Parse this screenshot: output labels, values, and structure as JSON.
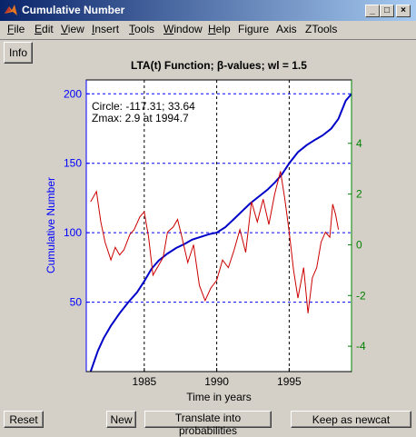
{
  "window": {
    "title": "Cumulative Number"
  },
  "title_buttons": {
    "minimize": "_",
    "maximize": "□",
    "close": "×"
  },
  "menus": [
    {
      "label": "File",
      "u": "F",
      "rest": "ile"
    },
    {
      "label": "Edit",
      "u": "E",
      "rest": "dit"
    },
    {
      "label": "View",
      "u": "V",
      "rest": "iew"
    },
    {
      "label": "Insert",
      "u": "I",
      "rest": "nsert"
    },
    {
      "label": "Tools",
      "u": "T",
      "rest": "ools"
    },
    {
      "label": "Window",
      "u": "W",
      "rest": "indow"
    },
    {
      "label": "Help",
      "u": "H",
      "rest": "elp"
    },
    {
      "label": "Figure",
      "u": "",
      "rest": "Figure"
    },
    {
      "label": "Axis",
      "u": "",
      "rest": "Axis"
    },
    {
      "label": "ZTools",
      "u": "",
      "rest": "ZTools"
    }
  ],
  "buttons": {
    "info": "Info",
    "reset": "Reset",
    "new": "New",
    "translate": "Translate into probabilities",
    "keep": "Keep as newcat"
  },
  "colors": {
    "left_axis": "#0000ff",
    "right_axis": "#008000",
    "cum_line": "#0000c8",
    "lta_line": "#cc0000",
    "title_gradient_start": "#0a246a"
  },
  "chart_data": {
    "type": "line",
    "title": "LTA(t) Function; β-values; wl = 1.5",
    "xlabel": "Time in years",
    "ylabel": "Cumulative Number",
    "xlim": [
      1981,
      1999.3
    ],
    "ylim_left": [
      0,
      210
    ],
    "ylim_right": [
      -5,
      6.5
    ],
    "x_ticks": [
      1985,
      1990,
      1995
    ],
    "y_ticks_left": [
      50,
      100,
      150,
      200
    ],
    "y_ticks_right": [
      -4,
      -2,
      0,
      2,
      4
    ],
    "grid": "dashed at ticks",
    "annotations": [
      "Circle: -117.31; 33.64",
      "Zmax: 2.9 at 1994.7"
    ],
    "series": [
      {
        "axis": "left",
        "x": [
          1981.3,
          1981.8,
          1982.2,
          1982.7,
          1983.3,
          1983.9,
          1984.5,
          1985.0,
          1985.5,
          1986.0,
          1986.6,
          1987.2,
          1987.8,
          1988.3,
          1988.9,
          1989.5,
          1990.0,
          1990.6,
          1991.2,
          1991.8,
          1992.3,
          1992.9,
          1993.5,
          1994.0,
          1994.5,
          1995.0,
          1995.6,
          1996.2,
          1996.8,
          1997.3,
          1997.9,
          1998.4,
          1998.9,
          1999.3
        ],
        "y": [
          0,
          15,
          24,
          33,
          42,
          50,
          57,
          65,
          74,
          80,
          85,
          89,
          92,
          95,
          97,
          99,
          100,
          104,
          110,
          116,
          121,
          126,
          131,
          136,
          142,
          150,
          158,
          163,
          167,
          170,
          175,
          182,
          195,
          200
        ]
      },
      {
        "axis": "right",
        "x": [
          1981.3,
          1981.7,
          1982.0,
          1982.3,
          1982.7,
          1983.0,
          1983.3,
          1983.6,
          1984.0,
          1984.3,
          1984.7,
          1985.0,
          1985.3,
          1985.6,
          1986.0,
          1986.3,
          1986.6,
          1987.0,
          1987.3,
          1987.6,
          1988.0,
          1988.4,
          1988.8,
          1989.2,
          1989.6,
          1990.0,
          1990.4,
          1990.8,
          1991.2,
          1991.6,
          1992.0,
          1992.4,
          1992.8,
          1993.2,
          1993.6,
          1994.0,
          1994.4,
          1994.7,
          1995.0,
          1995.3,
          1995.6,
          1996.0,
          1996.3,
          1996.6,
          1996.9,
          1997.2,
          1997.5,
          1997.8,
          1998.0,
          1998.2,
          1998.4
        ],
        "y": [
          1.7,
          2.1,
          0.9,
          0.1,
          -0.6,
          -0.1,
          -0.4,
          -0.2,
          0.4,
          0.6,
          1.1,
          1.3,
          0.3,
          -1.2,
          -0.8,
          -0.5,
          0.5,
          0.7,
          1.0,
          0.3,
          -0.7,
          0.0,
          -1.6,
          -2.2,
          -1.7,
          -1.4,
          -0.6,
          -0.9,
          -0.2,
          0.6,
          -0.3,
          1.7,
          0.9,
          1.8,
          0.8,
          2.0,
          2.9,
          1.8,
          0.5,
          -1.0,
          -2.1,
          -0.9,
          -2.7,
          -1.3,
          -0.9,
          0.1,
          0.5,
          0.3,
          1.6,
          1.2,
          0.6
        ]
      }
    ]
  }
}
